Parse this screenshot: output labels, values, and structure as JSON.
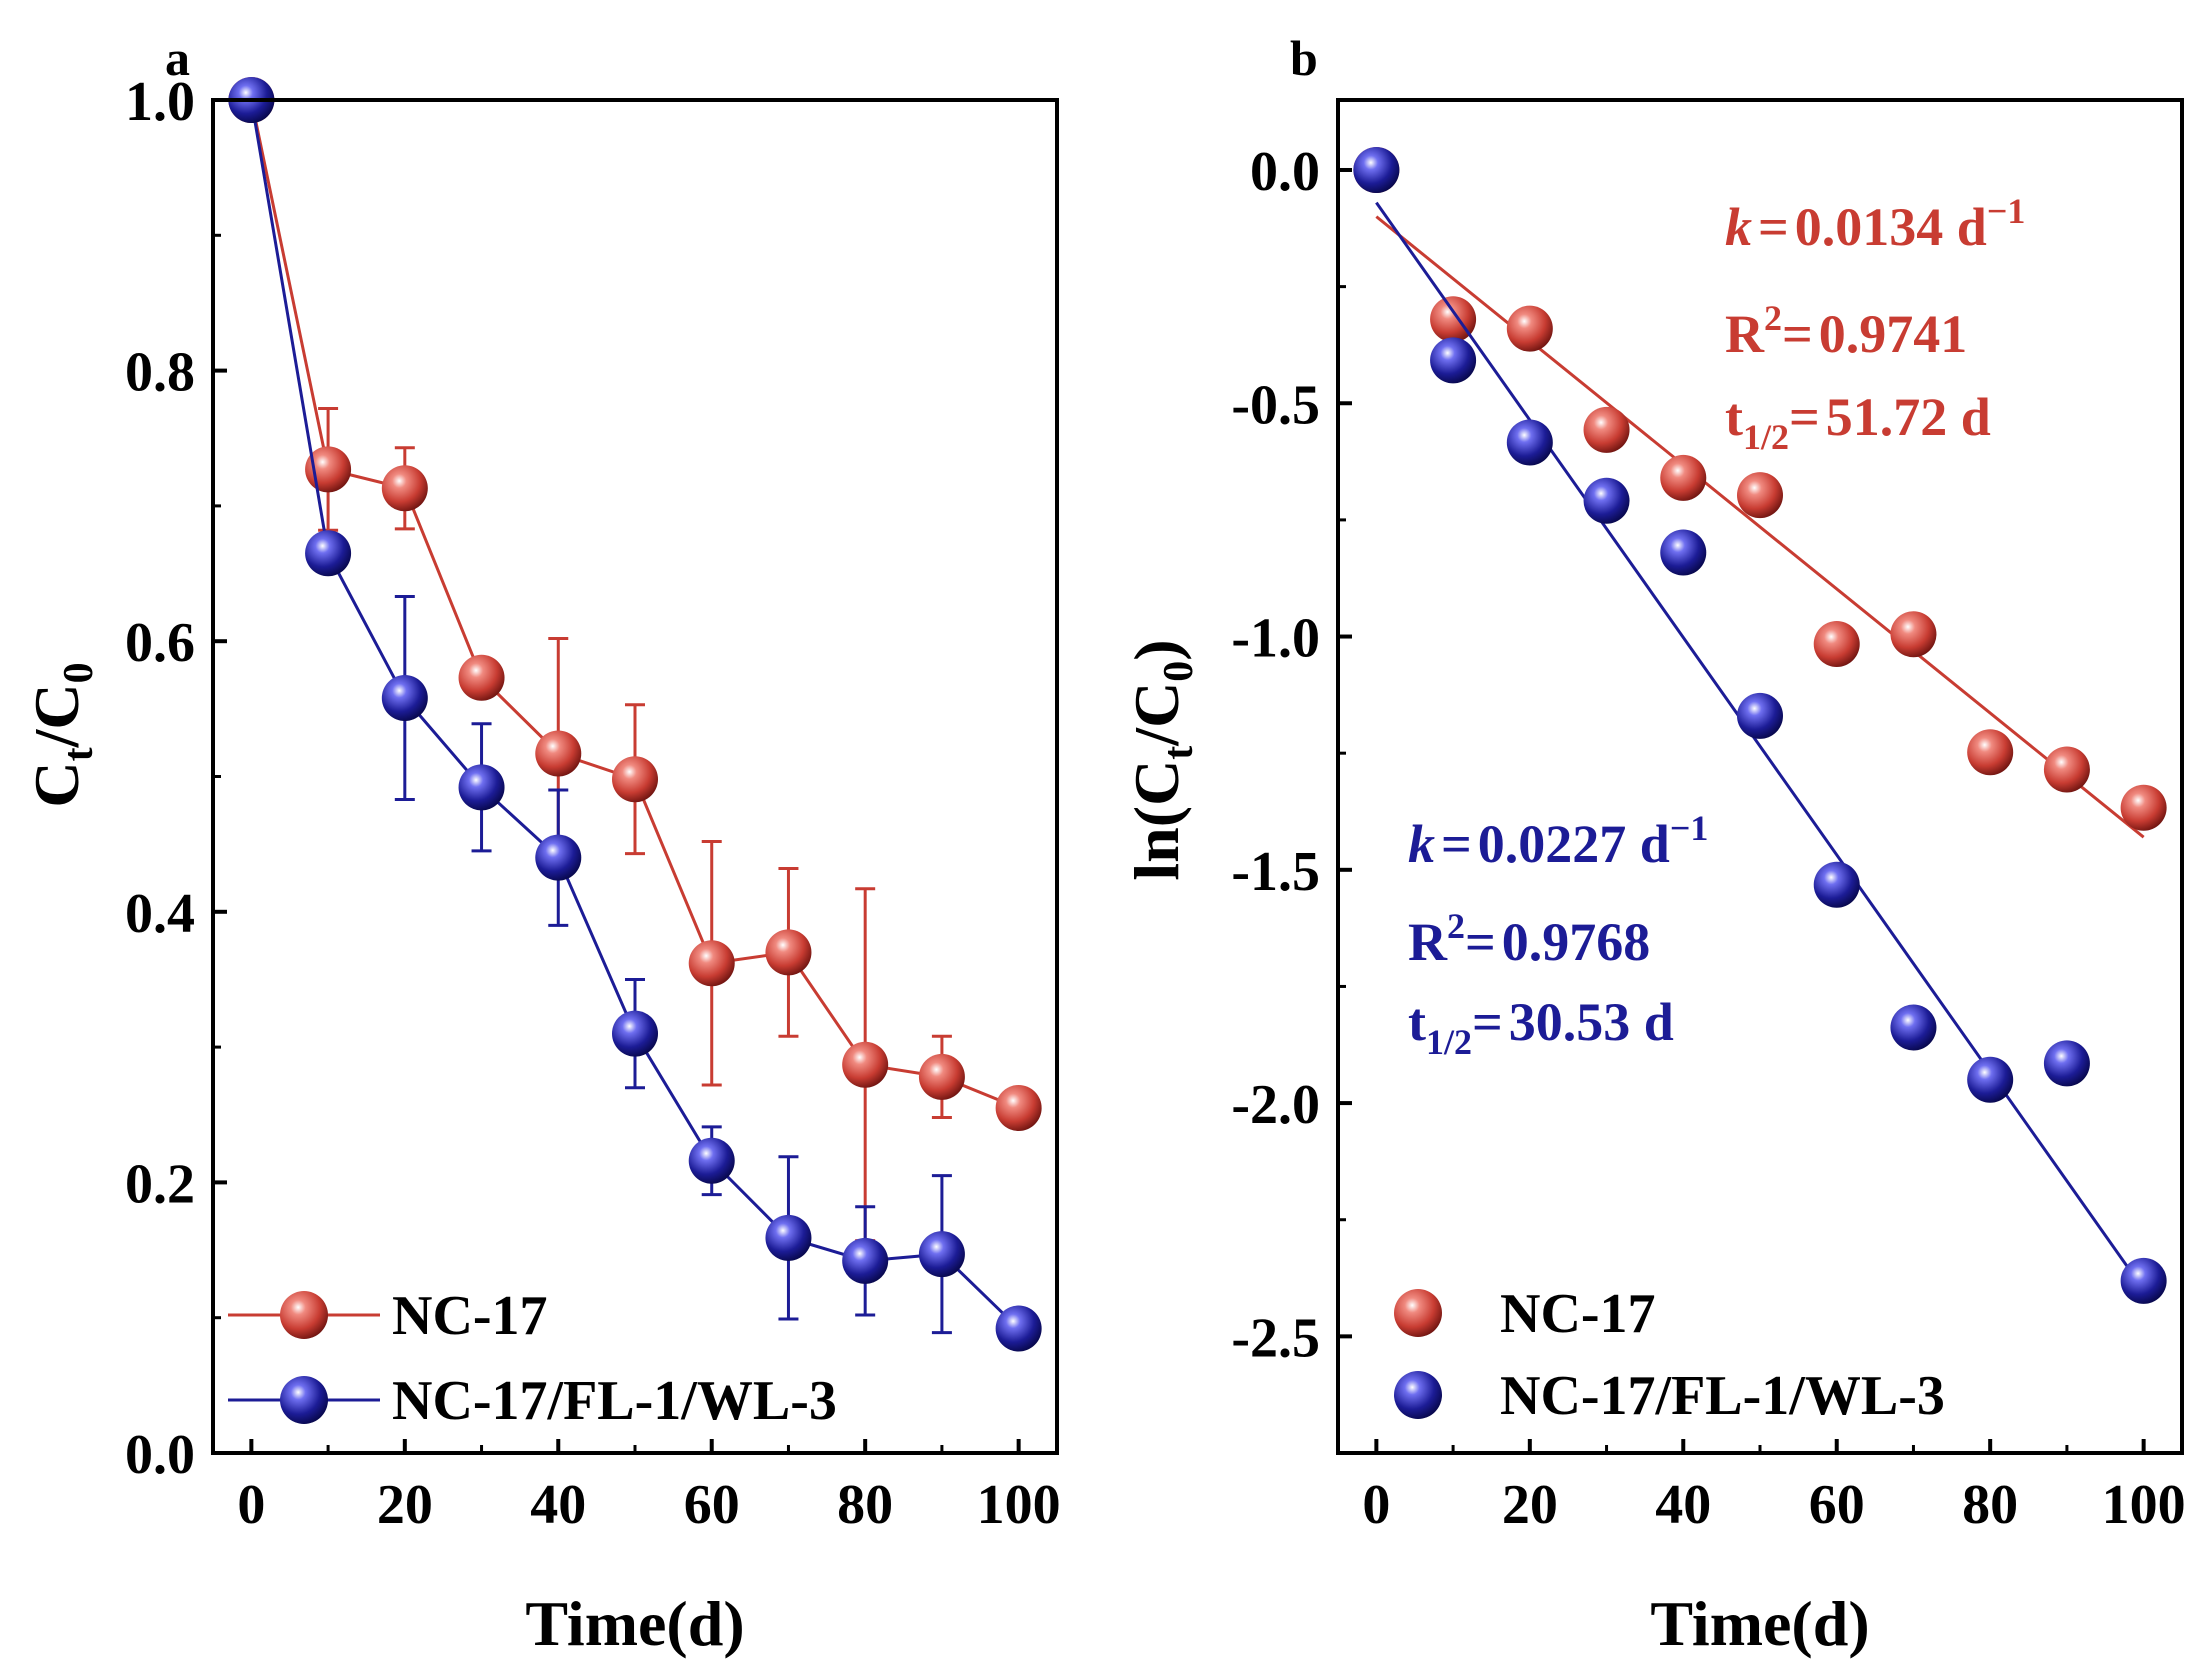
{
  "chart_data": [
    {
      "panel": "a",
      "type": "line",
      "xlabel": "Time(d)",
      "ylabel": "Ct/C0",
      "xlim": [
        -5,
        105
      ],
      "ylim": [
        0.0,
        1.0
      ],
      "xticks": [
        0,
        20,
        40,
        60,
        80,
        100
      ],
      "yticks": [
        "0.0",
        "0.2",
        "0.4",
        "0.6",
        "0.8",
        "1.0"
      ],
      "legend": "bottom-left",
      "series": [
        {
          "name": "NC-17",
          "color": "#c83c32",
          "x": [
            0,
            10,
            20,
            30,
            40,
            50,
            60,
            70,
            80,
            90,
            100
          ],
          "y": [
            1.0,
            0.727,
            0.713,
            0.573,
            0.517,
            0.498,
            0.362,
            0.37,
            0.287,
            0.278,
            0.255
          ],
          "err": [
            0,
            0.045,
            0.03,
            0.0,
            0.085,
            0.055,
            0.09,
            0.062,
            0.13,
            0.03,
            0.0
          ]
        },
        {
          "name": "NC-17/FL-1/WL-3",
          "color": "#1c1c96",
          "x": [
            0,
            10,
            20,
            30,
            40,
            50,
            60,
            70,
            80,
            90,
            100
          ],
          "y": [
            1.0,
            0.665,
            0.558,
            0.492,
            0.44,
            0.31,
            0.216,
            0.159,
            0.142,
            0.147,
            0.092
          ],
          "err": [
            0,
            0.0,
            0.075,
            0.047,
            0.05,
            0.04,
            0.025,
            0.06,
            0.04,
            0.058,
            0.0
          ]
        }
      ]
    },
    {
      "panel": "b",
      "type": "scatter",
      "xlabel": "Time(d)",
      "ylabel": "ln(Ct/C0)",
      "xlim": [
        -5,
        105
      ],
      "ylim": [
        -2.75,
        0.15
      ],
      "xticks": [
        0,
        20,
        40,
        60,
        80,
        100
      ],
      "yticks": [
        "0.0",
        "-0.5",
        "-1.0",
        "-1.5",
        "-2.0",
        "-2.5"
      ],
      "legend": "bottom-left",
      "series": [
        {
          "name": "NC-17",
          "color": "#c83c32",
          "x": [
            0,
            10,
            20,
            30,
            40,
            50,
            60,
            70,
            80,
            90,
            100
          ],
          "y": [
            0.0,
            -0.32,
            -0.34,
            -0.557,
            -0.66,
            -0.697,
            -1.016,
            -0.995,
            -1.248,
            -1.285,
            -1.367
          ],
          "fit": {
            "x": [
              0,
              100
            ],
            "y": [
              -0.1,
              -1.43
            ]
          },
          "annotation": {
            "k": "0.0134 d",
            "r2": "0.9741",
            "t_half": "51.72 d"
          }
        },
        {
          "name": "NC-17/FL-1/WL-3",
          "color": "#1c1c96",
          "x": [
            0,
            10,
            20,
            30,
            40,
            50,
            60,
            70,
            80,
            90,
            100
          ],
          "y": [
            0.0,
            -0.408,
            -0.584,
            -0.709,
            -0.82,
            -1.17,
            -1.532,
            -1.838,
            -1.95,
            -1.915,
            -2.381
          ],
          "fit": {
            "x": [
              0,
              100
            ],
            "y": [
              -0.07,
              -2.4
            ]
          },
          "annotation": {
            "k": "0.0227 d",
            "r2": "0.9768",
            "t_half": "30.53 d"
          }
        }
      ]
    }
  ],
  "labels": {
    "panel_a": "a",
    "panel_b": "b",
    "k_symbol": "k",
    "eq": "=",
    "inv": "−1",
    "r2_prefix": "R",
    "sq": "2",
    "t_prefix": "t",
    "t_sub": "1/2",
    "ylabel_a_main": "C",
    "ylabel_a_sub1": "t",
    "ylabel_a_mid": "/C",
    "ylabel_a_sub2": "0",
    "ylabel_b_pre": "ln(C",
    "ylabel_b_sub1": "t",
    "ylabel_b_mid": "/C",
    "ylabel_b_sub2": "0",
    "ylabel_b_post": ")"
  }
}
